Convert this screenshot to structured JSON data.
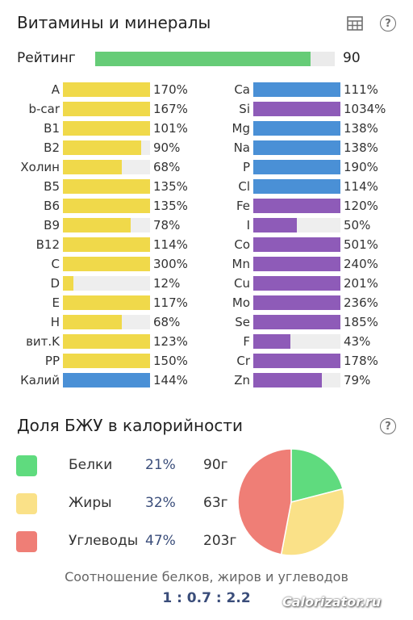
{
  "vitamins_section": {
    "title": "Витамины и минералы"
  },
  "icons": {
    "table": "table-icon",
    "help": "question-circle-icon"
  },
  "rating": {
    "label": "Рейтинг",
    "value": "90",
    "fraction": 0.9
  },
  "colors": {
    "vitamin": "#f0d94a",
    "macro": "#4a90d6",
    "micro": "#8e5bb8",
    "rating": "#66cc77",
    "protein": "#5fdb7e",
    "fat": "#fae188",
    "carbs": "#ef7e76"
  },
  "vitamins": [
    {
      "label": "A",
      "pct": "170%",
      "percent": 170,
      "kind": "vitamin"
    },
    {
      "label": "b-car",
      "pct": "167%",
      "percent": 167,
      "kind": "vitamin"
    },
    {
      "label": "B1",
      "pct": "101%",
      "percent": 101,
      "kind": "vitamin"
    },
    {
      "label": "B2",
      "pct": "90%",
      "percent": 90,
      "kind": "vitamin"
    },
    {
      "label": "Холин",
      "pct": "68%",
      "percent": 68,
      "kind": "vitamin"
    },
    {
      "label": "B5",
      "pct": "135%",
      "percent": 135,
      "kind": "vitamin"
    },
    {
      "label": "B6",
      "pct": "135%",
      "percent": 135,
      "kind": "vitamin"
    },
    {
      "label": "B9",
      "pct": "78%",
      "percent": 78,
      "kind": "vitamin"
    },
    {
      "label": "B12",
      "pct": "114%",
      "percent": 114,
      "kind": "vitamin"
    },
    {
      "label": "C",
      "pct": "300%",
      "percent": 300,
      "kind": "vitamin"
    },
    {
      "label": "D",
      "pct": "12%",
      "percent": 12,
      "kind": "vitamin"
    },
    {
      "label": "E",
      "pct": "117%",
      "percent": 117,
      "kind": "vitamin"
    },
    {
      "label": "H",
      "pct": "68%",
      "percent": 68,
      "kind": "vitamin"
    },
    {
      "label": "вит.K",
      "pct": "123%",
      "percent": 123,
      "kind": "vitamin"
    },
    {
      "label": "PP",
      "pct": "150%",
      "percent": 150,
      "kind": "vitamin"
    },
    {
      "label": "Калий",
      "pct": "144%",
      "percent": 144,
      "kind": "macro"
    }
  ],
  "minerals": [
    {
      "label": "Ca",
      "pct": "111%",
      "percent": 111,
      "kind": "macro"
    },
    {
      "label": "Si",
      "pct": "1034%",
      "percent": 1034,
      "kind": "micro"
    },
    {
      "label": "Mg",
      "pct": "138%",
      "percent": 138,
      "kind": "macro"
    },
    {
      "label": "Na",
      "pct": "138%",
      "percent": 138,
      "kind": "macro"
    },
    {
      "label": "P",
      "pct": "190%",
      "percent": 190,
      "kind": "macro"
    },
    {
      "label": "Cl",
      "pct": "114%",
      "percent": 114,
      "kind": "macro"
    },
    {
      "label": "Fe",
      "pct": "120%",
      "percent": 120,
      "kind": "micro"
    },
    {
      "label": "I",
      "pct": "50%",
      "percent": 50,
      "kind": "micro"
    },
    {
      "label": "Co",
      "pct": "501%",
      "percent": 501,
      "kind": "micro"
    },
    {
      "label": "Mn",
      "pct": "240%",
      "percent": 240,
      "kind": "micro"
    },
    {
      "label": "Cu",
      "pct": "201%",
      "percent": 201,
      "kind": "micro"
    },
    {
      "label": "Mo",
      "pct": "236%",
      "percent": 236,
      "kind": "micro"
    },
    {
      "label": "Se",
      "pct": "185%",
      "percent": 185,
      "kind": "micro"
    },
    {
      "label": "F",
      "pct": "43%",
      "percent": 43,
      "kind": "micro"
    },
    {
      "label": "Cr",
      "pct": "178%",
      "percent": 178,
      "kind": "micro"
    },
    {
      "label": "Zn",
      "pct": "79%",
      "percent": 79,
      "kind": "micro"
    }
  ],
  "bju_section": {
    "title": "Доля БЖУ в калорийности",
    "items": [
      {
        "name": "Белки",
        "pct": "21%",
        "grams": "90г",
        "percent": 21,
        "color": "#5fdb7e"
      },
      {
        "name": "Жиры",
        "pct": "32%",
        "grams": "63г",
        "percent": 32,
        "color": "#fae188"
      },
      {
        "name": "Углеводы",
        "pct": "47%",
        "grams": "203г",
        "percent": 47,
        "color": "#ef7e76"
      }
    ],
    "ratio_label": "Соотношение белков, жиров и углеводов",
    "ratio_value": "1 : 0.7 : 2.2"
  },
  "watermark": "Calorizator.ru"
}
